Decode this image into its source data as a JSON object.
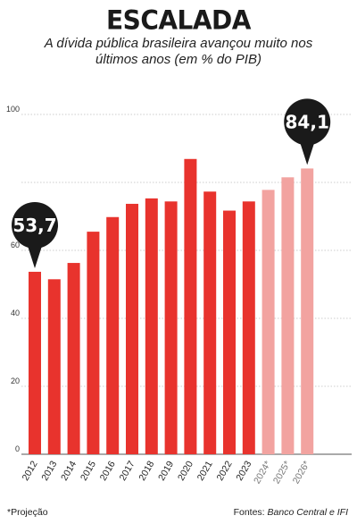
{
  "header": {
    "title": "ESCALADA",
    "subtitle": "A dívida pública brasileira avançou muito nos últimos anos (em % do PIB)"
  },
  "footer": {
    "note": "*Projeção",
    "sources_label": "Fontes:",
    "sources": "Banco Central e IFI"
  },
  "colors": {
    "actual": "#e8332d",
    "projection": "#f2a3a0",
    "bubble": "#1a1a1a",
    "grid": "#bdbdbd"
  },
  "chart_data": {
    "type": "bar",
    "categories": [
      "2012",
      "2013",
      "2014",
      "2015",
      "2016",
      "2017",
      "2018",
      "2019",
      "2020",
      "2021",
      "2022",
      "2023",
      "2024*",
      "2025*",
      "2026*"
    ],
    "values": [
      53.7,
      51.5,
      56.3,
      65.5,
      69.8,
      73.7,
      75.3,
      74.4,
      86.9,
      77.3,
      71.7,
      74.4,
      77.8,
      81.5,
      84.1
    ],
    "projection_from_index": 12,
    "ylim": [
      0,
      100
    ],
    "yticks": [
      0,
      20,
      40,
      60,
      100
    ],
    "grid": true,
    "callouts": [
      {
        "index": 0,
        "label": "53,7"
      },
      {
        "index": 14,
        "label": "84,1"
      }
    ]
  }
}
